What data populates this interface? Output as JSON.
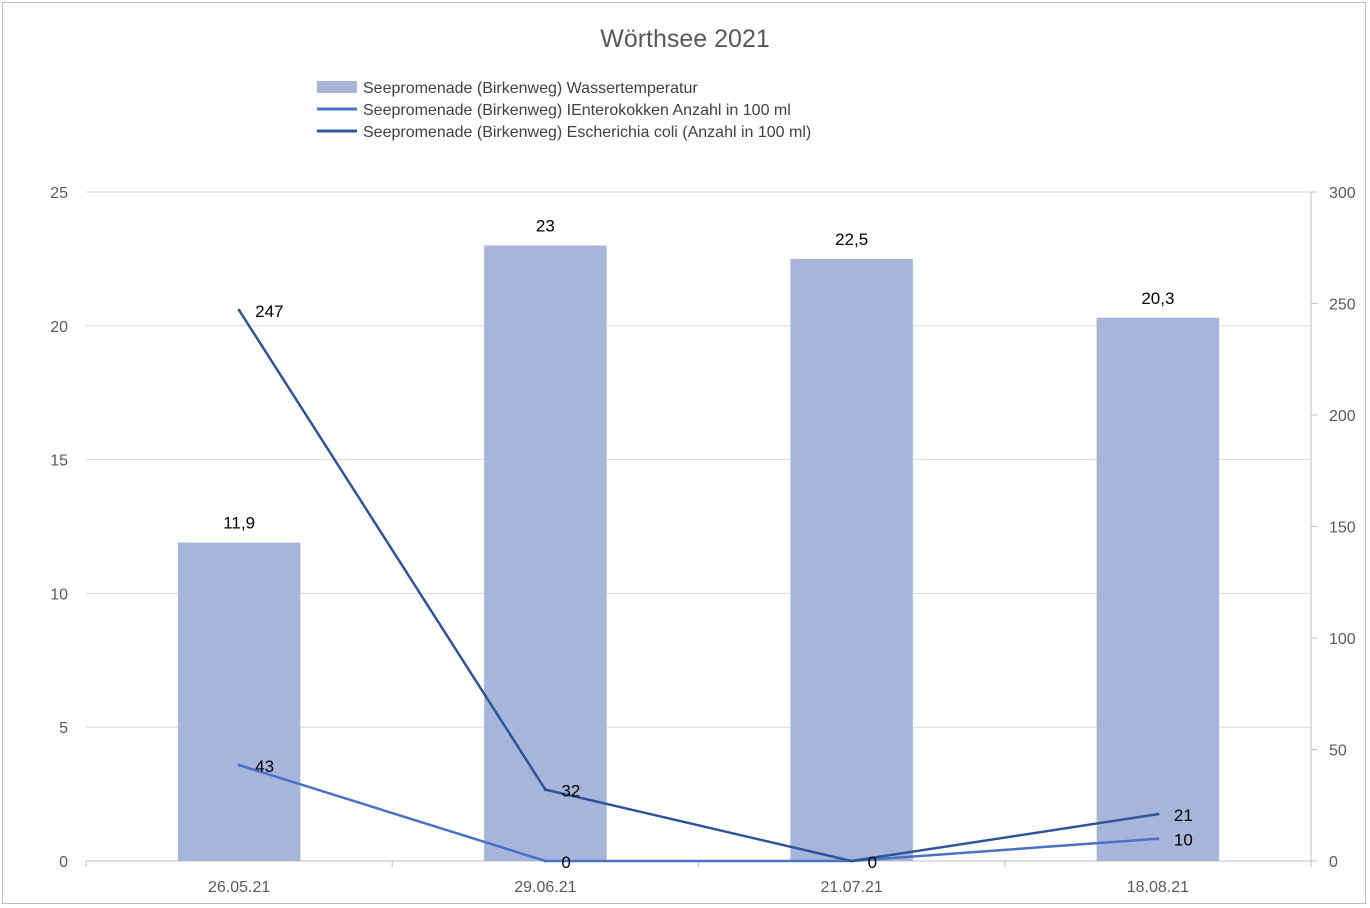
{
  "chart_data": {
    "type": "bar",
    "title": "Wörthsee 2021",
    "categories": [
      "26.05.21",
      "29.06.21",
      "21.07.21",
      "18.08.21"
    ],
    "y_left": {
      "ylim": [
        0,
        25
      ],
      "ticks": [
        "0",
        "5",
        "10",
        "15",
        "20",
        "25"
      ]
    },
    "y_right": {
      "ylim": [
        0,
        300
      ],
      "ticks": [
        "0",
        "50",
        "100",
        "150",
        "200",
        "250",
        "300"
      ]
    },
    "grid": true,
    "legend_position": "top",
    "series": [
      {
        "name": "Seepromenade (Birkenweg) Wassertemperatur",
        "type": "bar",
        "axis": "left",
        "color": "#a7b5db",
        "values": [
          11.9,
          23,
          22.5,
          20.3
        ],
        "labels": [
          "11,9",
          "23",
          "22,5",
          "20,3"
        ]
      },
      {
        "name": "Seepromenade (Birkenweg) IEnterokokken Anzahl in 100 ml",
        "type": "line",
        "axis": "right",
        "color": "#4a72c4",
        "values": [
          43,
          0,
          0,
          10
        ],
        "labels": [
          "43",
          "0",
          "",
          "10"
        ]
      },
      {
        "name": "Seepromenade (Birkenweg) Escherichia coli  (Anzahl in 100 ml)",
        "type": "line",
        "axis": "right",
        "color": "#2f5597",
        "values": [
          247,
          32,
          0,
          21
        ],
        "labels": [
          "247",
          "32",
          "0",
          "21"
        ]
      }
    ]
  }
}
